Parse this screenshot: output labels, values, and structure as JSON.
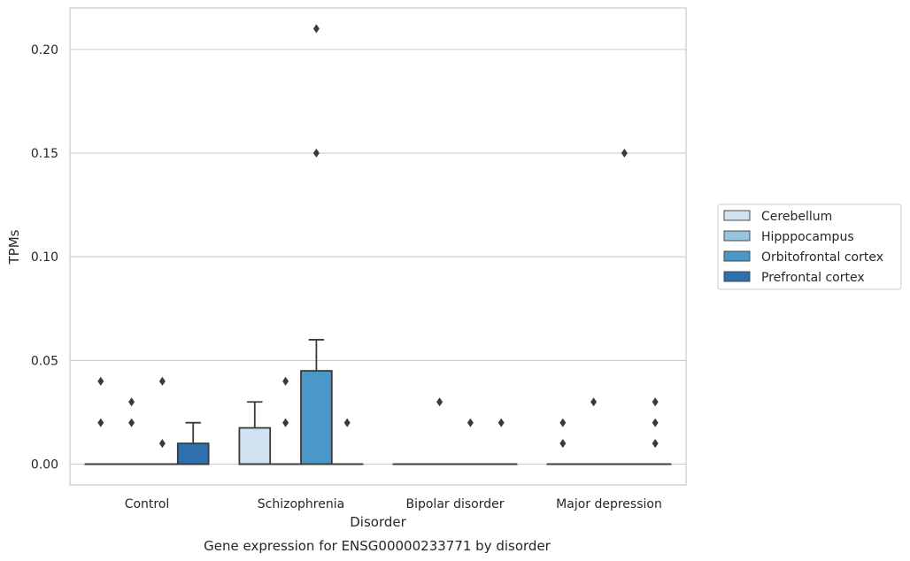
{
  "chart_data": {
    "type": "boxplot",
    "title": "Gene expression for ENSG00000233771 by disorder",
    "xlabel": "Disorder",
    "ylabel": "TPMs",
    "ylim": [
      -0.01,
      0.22
    ],
    "yticks": [
      "0.00",
      "0.05",
      "0.10",
      "0.15",
      "0.20"
    ],
    "ytick_values": [
      0,
      0.05,
      0.1,
      0.15,
      0.2
    ],
    "grid": "horizontal",
    "legend_position": "right",
    "categories": [
      "Control",
      "Schizophrenia",
      "Bipolar disorder",
      "Major depression"
    ],
    "series": [
      {
        "name": "Cerebellum",
        "color": "#d0e1f2",
        "boxes": [
          {
            "q1": 0,
            "median": 0,
            "q3": 0,
            "whisker_low": 0,
            "whisker_high": 0,
            "outliers": [
              0.02,
              0.04
            ]
          },
          {
            "q1": 0,
            "median": 0,
            "q3": 0.0175,
            "whisker_low": 0,
            "whisker_high": 0.03,
            "outliers": []
          },
          {
            "q1": 0,
            "median": 0,
            "q3": 0,
            "whisker_low": 0,
            "whisker_high": 0,
            "outliers": []
          },
          {
            "q1": 0,
            "median": 0,
            "q3": 0,
            "whisker_low": 0,
            "whisker_high": 0,
            "outliers": [
              0.01,
              0.02
            ]
          }
        ]
      },
      {
        "name": "Hipppocampus",
        "color": "#94c4df",
        "boxes": [
          {
            "q1": 0,
            "median": 0,
            "q3": 0,
            "whisker_low": 0,
            "whisker_high": 0,
            "outliers": [
              0.02,
              0.03
            ]
          },
          {
            "q1": 0,
            "median": 0,
            "q3": 0,
            "whisker_low": 0,
            "whisker_high": 0,
            "outliers": [
              0.02,
              0.04
            ]
          },
          {
            "q1": 0,
            "median": 0,
            "q3": 0,
            "whisker_low": 0,
            "whisker_high": 0,
            "outliers": [
              0.03
            ]
          },
          {
            "q1": 0,
            "median": 0,
            "q3": 0,
            "whisker_low": 0,
            "whisker_high": 0,
            "outliers": [
              0.03
            ]
          }
        ]
      },
      {
        "name": "Orbitofrontal cortex",
        "color": "#4a98c9",
        "boxes": [
          {
            "q1": 0,
            "median": 0,
            "q3": 0,
            "whisker_low": 0,
            "whisker_high": 0,
            "outliers": [
              0.01,
              0.04
            ]
          },
          {
            "q1": 0,
            "median": 0,
            "q3": 0.045,
            "whisker_low": 0,
            "whisker_high": 0.06,
            "outliers": [
              0.15,
              0.21
            ]
          },
          {
            "q1": 0,
            "median": 0,
            "q3": 0,
            "whisker_low": 0,
            "whisker_high": 0,
            "outliers": [
              0.02
            ]
          },
          {
            "q1": 0,
            "median": 0,
            "q3": 0,
            "whisker_low": 0,
            "whisker_high": 0,
            "outliers": [
              0.15
            ]
          }
        ]
      },
      {
        "name": "Prefrontal cortex",
        "color": "#2e6fad",
        "boxes": [
          {
            "q1": 0,
            "median": 0,
            "q3": 0.01,
            "whisker_low": 0,
            "whisker_high": 0.02,
            "outliers": []
          },
          {
            "q1": 0,
            "median": 0,
            "q3": 0,
            "whisker_low": 0,
            "whisker_high": 0,
            "outliers": [
              0.02
            ]
          },
          {
            "q1": 0,
            "median": 0,
            "q3": 0,
            "whisker_low": 0,
            "whisker_high": 0,
            "outliers": [
              0.02
            ]
          },
          {
            "q1": 0,
            "median": 0,
            "q3": 0,
            "whisker_low": 0,
            "whisker_high": 0,
            "outliers": [
              0.01,
              0.02,
              0.03
            ]
          }
        ]
      }
    ]
  }
}
